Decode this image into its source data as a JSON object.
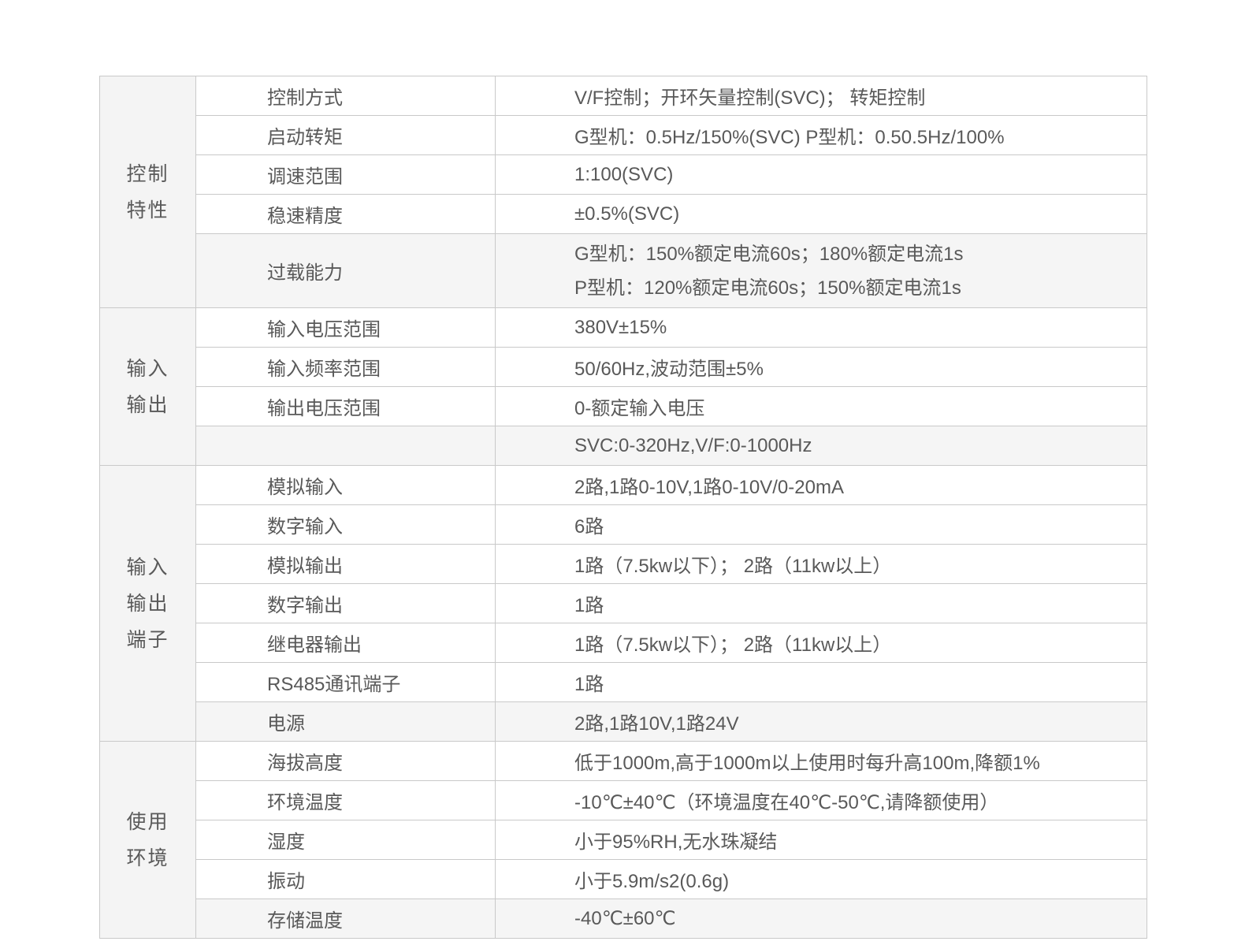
{
  "page": {
    "background": "#ffffff"
  },
  "colors": {
    "category_bg": "#f4f4f4",
    "shaded_row_bg": "#f5f5f5",
    "row_bg": "#ffffff",
    "border": "#c9c9c9",
    "text": "#595959"
  },
  "table": {
    "columns": [
      "category",
      "parameter",
      "value"
    ],
    "sections": [
      {
        "category": "控制特性",
        "category_lines": [
          "控制",
          "特性"
        ],
        "rows": [
          {
            "param": "控制方式",
            "value": "V/F控制；开环矢量控制(SVC)； 转矩控制"
          },
          {
            "param": "启动转矩",
            "value": "G型机：0.5Hz/150%(SVC) P型机：0.50.5Hz/100%"
          },
          {
            "param": "调速范围",
            "value": "1:100(SVC)"
          },
          {
            "param": "稳速精度",
            "value": "±0.5%(SVC)"
          },
          {
            "param": "过载能力",
            "value_lines": [
              "G型机：150%额定电流60s；180%额定电流1s",
              "P型机：120%额定电流60s；150%额定电流1s"
            ],
            "shaded": true,
            "tall": true
          }
        ]
      },
      {
        "category": "输入输出",
        "category_lines": [
          "输入",
          "输出"
        ],
        "rows": [
          {
            "param": "输入电压范围",
            "value": "380V±15%"
          },
          {
            "param": "输入频率范围",
            "value": "50/60Hz,波动范围±5%"
          },
          {
            "param": "输出电压范围",
            "value": "0-额定输入电压"
          },
          {
            "param": "",
            "value": "SVC:0-320Hz,V/F:0-1000Hz",
            "shaded": true
          }
        ]
      },
      {
        "category": "输入输出端子",
        "category_lines": [
          "输入",
          "输出",
          "端子"
        ],
        "rows": [
          {
            "param": "模拟输入",
            "value": "2路,1路0-10V,1路0-10V/0-20mA"
          },
          {
            "param": "数字输入",
            "value": "6路"
          },
          {
            "param": "模拟输出",
            "value": "1路（7.5kw以下）； 2路（11kw以上）"
          },
          {
            "param": "数字输出",
            "value": "1路"
          },
          {
            "param": "继电器输出",
            "value": "1路（7.5kw以下）； 2路（11kw以上）"
          },
          {
            "param": "RS485通讯端子",
            "value": "1路"
          },
          {
            "param": "电源",
            "value": "2路,1路10V,1路24V",
            "shaded": true
          }
        ]
      },
      {
        "category": "使用环境",
        "category_lines": [
          "使用",
          "环境"
        ],
        "rows": [
          {
            "param": "海拔高度",
            "value": "低于1000m,高于1000m以上使用时每升高100m,降额1%"
          },
          {
            "param": "环境温度",
            "value": "-10℃±40℃（环境温度在40℃-50℃,请降额使用）"
          },
          {
            "param": "湿度",
            "value": "小于95%RH,无水珠凝结"
          },
          {
            "param": "振动",
            "value": "小于5.9m/s2(0.6g)"
          },
          {
            "param": "存储温度",
            "value": "-40℃±60℃",
            "shaded": true
          }
        ]
      }
    ]
  }
}
